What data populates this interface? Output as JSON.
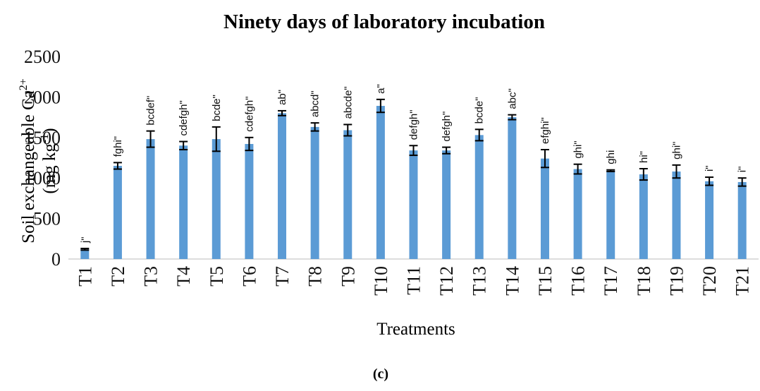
{
  "chart_data": {
    "type": "bar",
    "title": "Ninety days of laboratory incubation",
    "ylabel": [
      "Soil exchangeable Ca",
      "2+"
    ],
    "yunit": [
      "(mg kg",
      "-1",
      ")"
    ],
    "xlabel": "Treatments",
    "caption": "(c)",
    "categories": [
      "T1",
      "T2",
      "T3",
      "T4",
      "T5",
      "T6",
      "T7",
      "T8",
      "T9",
      "T10",
      "T11",
      "T12",
      "T13",
      "T14",
      "T15",
      "T16",
      "T17",
      "T18",
      "T19",
      "T20",
      "T21"
    ],
    "values": [
      120,
      1150,
      1480,
      1400,
      1480,
      1420,
      1800,
      1630,
      1590,
      1890,
      1340,
      1340,
      1530,
      1750,
      1240,
      1110,
      1090,
      1045,
      1080,
      960,
      950
    ],
    "errors": [
      10,
      40,
      100,
      50,
      150,
      80,
      30,
      50,
      70,
      80,
      60,
      40,
      70,
      30,
      110,
      60,
      10,
      70,
      80,
      50,
      50
    ],
    "annotations": [
      "j\"",
      "fghi\"",
      "bcdef\"",
      "cdefgh\"",
      "bcde\"",
      "cdefgh\"",
      "ab\"",
      "abcd\"",
      "abcde\"",
      "a\"",
      "defgh\"",
      "defgh\"",
      "bcde\"",
      "abc\"",
      "efghi\"",
      "ghi\"",
      "ghi",
      "hi\"",
      "ghi\"",
      "i\"",
      "i\""
    ],
    "color": "#5b9bd5",
    "ylim": [
      0,
      2500
    ],
    "yticks": [
      0,
      500,
      1000,
      1500,
      2000,
      2500
    ],
    "grid": false
  }
}
